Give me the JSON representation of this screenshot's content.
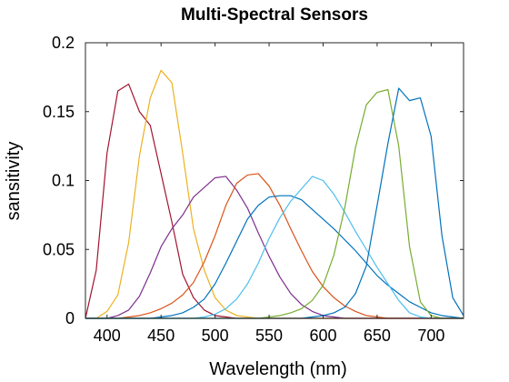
{
  "chart_data": {
    "type": "line",
    "title": "Multi-Spectral Sensors",
    "xlabel": "Wavelength (nm)",
    "ylabel": "sansitivity",
    "xlim": [
      380,
      730
    ],
    "ylim": [
      0,
      0.2
    ],
    "xticks": [
      400,
      450,
      500,
      550,
      600,
      650,
      700
    ],
    "yticks": [
      0,
      0.05,
      0.1,
      0.15,
      0.2
    ],
    "ytick_labels": [
      "0",
      "0.05",
      "0.1",
      "0.15",
      "0.2"
    ],
    "grid": false,
    "legend": false,
    "x": [
      380,
      390,
      400,
      410,
      420,
      430,
      440,
      450,
      460,
      470,
      480,
      490,
      500,
      510,
      520,
      530,
      540,
      550,
      560,
      570,
      580,
      590,
      600,
      610,
      620,
      630,
      640,
      650,
      660,
      670,
      680,
      690,
      700,
      710,
      720,
      730
    ],
    "series": [
      {
        "color": "#A2142F",
        "values": [
          0,
          0.035,
          0.12,
          0.165,
          0.17,
          0.15,
          0.14,
          0.105,
          0.07,
          0.032,
          0.015,
          0.006,
          0.002,
          0.001,
          0,
          0,
          0,
          0,
          0,
          0,
          0,
          0,
          0,
          0,
          0,
          0,
          0,
          0,
          0,
          0,
          0,
          0,
          0,
          0,
          0,
          0
        ]
      },
      {
        "color": "#EDB120",
        "values": [
          0,
          0,
          0.005,
          0.017,
          0.055,
          0.118,
          0.16,
          0.18,
          0.171,
          0.12,
          0.065,
          0.035,
          0.015,
          0.006,
          0.002,
          0.001,
          0,
          0,
          0,
          0,
          0,
          0,
          0,
          0,
          0,
          0,
          0,
          0,
          0,
          0,
          0,
          0,
          0,
          0,
          0,
          0
        ]
      },
      {
        "color": "#7E2F8E",
        "values": [
          0,
          0,
          0,
          0.002,
          0.006,
          0.016,
          0.033,
          0.052,
          0.065,
          0.075,
          0.088,
          0.095,
          0.102,
          0.103,
          0.093,
          0.08,
          0.062,
          0.045,
          0.03,
          0.018,
          0.01,
          0.005,
          0.002,
          0.001,
          0,
          0,
          0,
          0,
          0,
          0,
          0,
          0,
          0,
          0,
          0,
          0
        ]
      },
      {
        "color": "#D95319",
        "values": [
          0,
          0,
          0,
          0,
          0.001,
          0.002,
          0.004,
          0.007,
          0.011,
          0.017,
          0.026,
          0.041,
          0.06,
          0.082,
          0.098,
          0.104,
          0.105,
          0.096,
          0.082,
          0.065,
          0.049,
          0.034,
          0.023,
          0.015,
          0.009,
          0.005,
          0.002,
          0.001,
          0,
          0,
          0,
          0,
          0,
          0,
          0,
          0
        ]
      },
      {
        "color": "#0072BD",
        "values": [
          0,
          0,
          0,
          0,
          0,
          0,
          0,
          0.001,
          0.002,
          0.004,
          0.008,
          0.014,
          0.025,
          0.04,
          0.056,
          0.072,
          0.082,
          0.088,
          0.089,
          0.089,
          0.086,
          0.079,
          0.072,
          0.065,
          0.057,
          0.049,
          0.04,
          0.031,
          0.024,
          0.018,
          0.012,
          0.008,
          0.004,
          0.002,
          0.001,
          0
        ]
      },
      {
        "color": "#4DBEEE",
        "values": [
          0,
          0,
          0,
          0,
          0,
          0,
          0,
          0,
          0,
          0,
          0,
          0.001,
          0.003,
          0.007,
          0.014,
          0.025,
          0.04,
          0.058,
          0.073,
          0.085,
          0.094,
          0.103,
          0.1,
          0.09,
          0.077,
          0.063,
          0.05,
          0.037,
          0.025,
          0.013,
          0.004,
          0.001,
          0,
          0,
          0,
          0
        ]
      },
      {
        "color": "#77AC30",
        "values": [
          0,
          0,
          0,
          0,
          0,
          0,
          0,
          0,
          0,
          0,
          0,
          0,
          0,
          0,
          0,
          0,
          0,
          0.001,
          0.002,
          0.004,
          0.007,
          0.013,
          0.024,
          0.046,
          0.08,
          0.124,
          0.155,
          0.164,
          0.166,
          0.125,
          0.052,
          0.012,
          0.002,
          0,
          0,
          0
        ]
      },
      {
        "color": "#0072BD",
        "values": [
          0,
          0,
          0,
          0,
          0,
          0,
          0,
          0,
          0,
          0,
          0,
          0,
          0,
          0,
          0,
          0,
          0,
          0,
          0,
          0,
          0,
          0.001,
          0.002,
          0.004,
          0.008,
          0.018,
          0.038,
          0.082,
          0.127,
          0.167,
          0.158,
          0.16,
          0.132,
          0.06,
          0.015,
          0.002
        ]
      }
    ]
  }
}
